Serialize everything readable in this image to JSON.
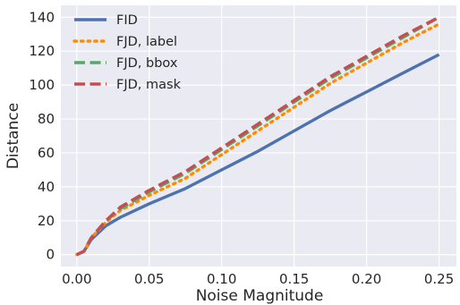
{
  "chart_data": {
    "type": "line",
    "xlabel": "Noise Magnitude",
    "ylabel": "Distance",
    "xlim": [
      -0.011,
      0.262
    ],
    "ylim": [
      -7,
      147
    ],
    "x_ticks": [
      0.0,
      0.05,
      0.1,
      0.15,
      0.2,
      0.25
    ],
    "x_tick_labels": [
      "0.00",
      "0.05",
      "0.10",
      "0.15",
      "0.20",
      "0.25"
    ],
    "y_ticks": [
      0,
      20,
      40,
      60,
      80,
      100,
      120,
      140
    ],
    "y_tick_labels": [
      "0",
      "20",
      "40",
      "60",
      "80",
      "100",
      "120",
      "140"
    ],
    "grid": true,
    "legend_position": "top-left",
    "series": [
      {
        "name": "FID",
        "color": "#4c72b0",
        "style": "solid",
        "x": [
          0.0,
          0.005,
          0.01,
          0.02,
          0.03,
          0.05,
          0.075,
          0.1,
          0.125,
          0.15,
          0.175,
          0.2,
          0.225,
          0.25
        ],
        "y": [
          0,
          2,
          9,
          17,
          22,
          30,
          39,
          50,
          61,
          73,
          85,
          96,
          107,
          118
        ]
      },
      {
        "name": "FJD, label",
        "color": "#ff8c00",
        "style": "dotted",
        "x": [
          0.0,
          0.005,
          0.01,
          0.02,
          0.03,
          0.05,
          0.075,
          0.1,
          0.125,
          0.15,
          0.175,
          0.2,
          0.225,
          0.25
        ],
        "y": [
          0,
          2,
          10,
          19,
          26,
          35,
          45,
          59,
          73,
          87,
          101,
          113,
          125,
          136
        ]
      },
      {
        "name": "FJD, bbox",
        "color": "#55a868",
        "style": "dashed",
        "x": [
          0.0,
          0.005,
          0.01,
          0.02,
          0.03,
          0.05,
          0.075,
          0.1,
          0.125,
          0.15,
          0.175,
          0.2,
          0.225,
          0.25
        ],
        "y": [
          0,
          2,
          10,
          20,
          27,
          37,
          48,
          62,
          76,
          90,
          104,
          116,
          128,
          140
        ]
      },
      {
        "name": "FJD, mask",
        "color": "#c44e52",
        "style": "dashed",
        "x": [
          0.0,
          0.005,
          0.01,
          0.02,
          0.03,
          0.05,
          0.075,
          0.1,
          0.125,
          0.15,
          0.175,
          0.2,
          0.225,
          0.25
        ],
        "y": [
          0,
          2,
          10,
          20,
          28,
          38,
          49,
          63,
          77,
          91,
          105,
          117,
          129,
          140
        ]
      }
    ]
  }
}
